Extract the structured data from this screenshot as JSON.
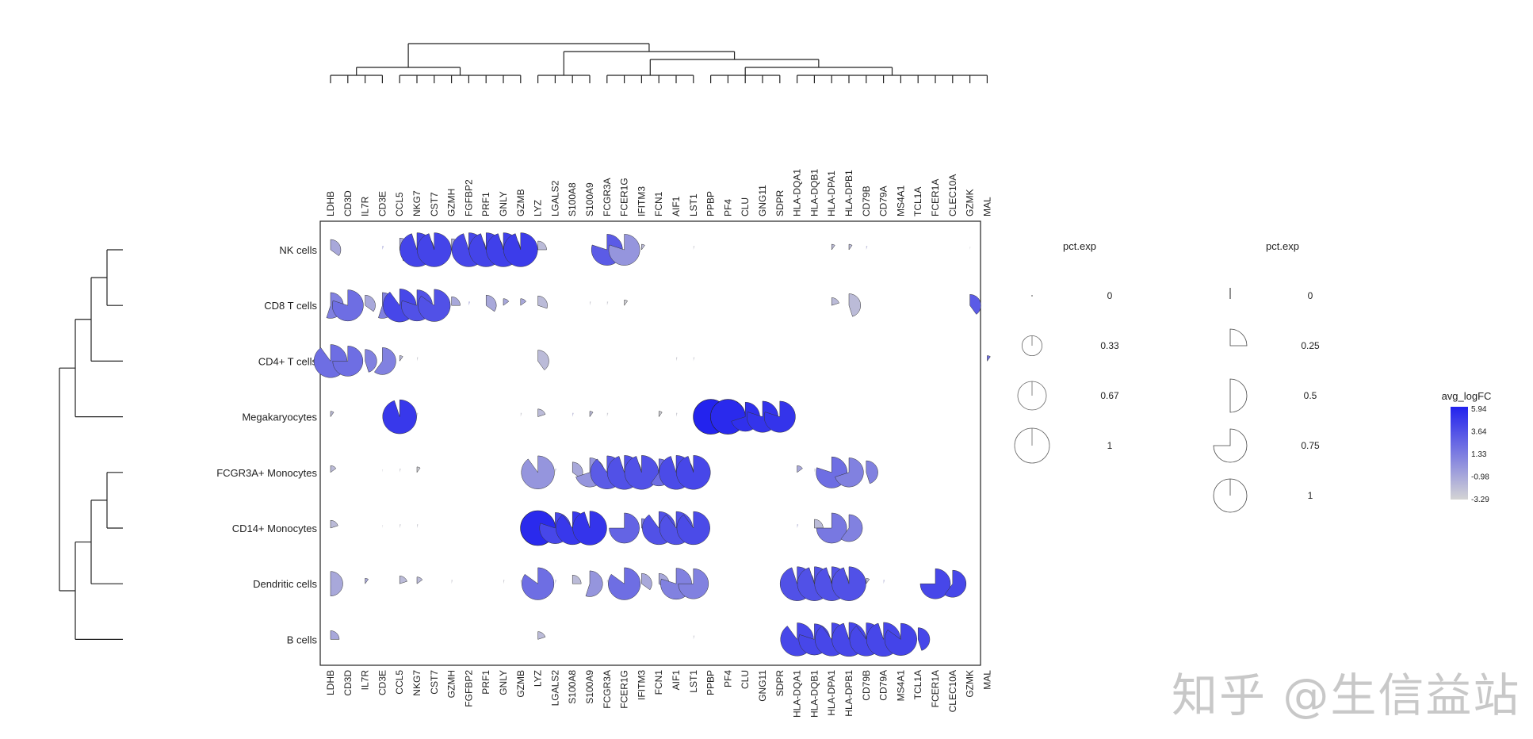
{
  "chart_data": {
    "type": "scatter",
    "genes": [
      "LDHB",
      "CD3D",
      "IL7R",
      "CD3E",
      "CCL5",
      "NKG7",
      "CST7",
      "GZMH",
      "FGFBP2",
      "PRF1",
      "GNLY",
      "GZMB",
      "LYZ",
      "LGALS2",
      "S100A8",
      "S100A9",
      "FCGR3A",
      "FCER1G",
      "IFITM3",
      "FCN1",
      "AIF1",
      "LST1",
      "PPBP",
      "PF4",
      "CLU",
      "GNG11",
      "SDPR",
      "HLA-DQA1",
      "HLA-DQB1",
      "HLA-DPA1",
      "HLA-DPB1",
      "CD79B",
      "CD79A",
      "MS4A1",
      "TCL1A",
      "FCER1A",
      "CLEC10A",
      "GZMK",
      "MAL"
    ],
    "cell_types": [
      "NK cells",
      "CD8 T cells",
      "CD4+ T cells",
      "Megakaryocytes",
      "FCGR3A+ Monocytes",
      "CD14+ Monocytes",
      "Dendritic cells",
      "B cells"
    ],
    "pct_exp": [
      [
        0.35,
        0,
        0,
        0.05,
        0.45,
        0.95,
        0.95,
        0.4,
        0.95,
        0.95,
        0.95,
        0.95,
        0.25,
        0,
        0,
        0,
        0.8,
        0.8,
        0.1,
        0,
        0,
        0.05,
        0,
        0,
        0,
        0,
        0,
        0,
        0,
        0.1,
        0.1,
        0.05,
        0,
        0,
        0,
        0,
        0,
        0.03,
        0
      ],
      [
        0.55,
        0.8,
        0.35,
        0.55,
        0.9,
        0.8,
        0.85,
        0.25,
        0.05,
        0.35,
        0.15,
        0.15,
        0.3,
        0,
        0,
        0.05,
        0.05,
        0.1,
        0,
        0,
        0,
        0,
        0,
        0,
        0,
        0,
        0,
        0,
        0,
        0.2,
        0.45,
        0,
        0,
        0,
        0,
        0,
        0,
        0.4,
        0
      ],
      [
        0.9,
        0.75,
        0.45,
        0.6,
        0.1,
        0.05,
        0,
        0,
        0,
        0,
        0,
        0,
        0.4,
        0,
        0,
        0,
        0,
        0,
        0,
        0,
        0.05,
        0.05,
        0,
        0,
        0,
        0,
        0,
        0,
        0,
        0,
        0,
        0,
        0,
        0,
        0,
        0,
        0,
        0,
        0.1
      ],
      [
        0.1,
        0,
        0,
        0.05,
        0.95,
        0.05,
        0,
        0,
        0,
        0,
        0,
        0.05,
        0.2,
        0,
        0.05,
        0.1,
        0.05,
        0,
        0,
        0.1,
        0.05,
        0,
        1,
        1,
        0.7,
        0.8,
        0.8,
        0,
        0,
        0,
        0,
        0,
        0,
        0,
        0,
        0,
        0,
        0,
        0
      ],
      [
        0.15,
        0,
        0,
        0.03,
        0.05,
        0.1,
        0,
        0,
        0,
        0,
        0,
        0,
        0.9,
        0.05,
        0.35,
        0.7,
        0.9,
        0.95,
        0.95,
        0.6,
        0.95,
        0.95,
        0,
        0,
        0,
        0,
        0,
        0.15,
        0.05,
        0.8,
        0.7,
        0.45,
        0,
        0,
        0,
        0,
        0,
        0,
        0
      ],
      [
        0.2,
        0,
        0,
        0.03,
        0.05,
        0.05,
        0,
        0,
        0,
        0,
        0,
        0,
        1,
        0.8,
        0.9,
        0.95,
        0,
        0.75,
        0.3,
        0.9,
        0.9,
        0.9,
        0,
        0,
        0,
        0,
        0,
        0.05,
        0.25,
        0.75,
        0.6,
        0,
        0,
        0,
        0,
        0,
        0,
        0,
        0
      ],
      [
        0.5,
        0,
        0.1,
        0,
        0.2,
        0.15,
        0,
        0.05,
        0,
        0,
        0.05,
        0.05,
        0.85,
        0.05,
        0.25,
        0.55,
        0.05,
        0.85,
        0.35,
        0.35,
        0.8,
        0.75,
        0,
        0,
        0,
        0,
        0,
        0.95,
        0.95,
        0.95,
        0.95,
        0.1,
        0.05,
        0,
        0,
        0.75,
        0.6,
        0,
        0
      ],
      [
        0.25,
        0,
        0,
        0,
        0,
        0,
        0,
        0,
        0,
        0,
        0,
        0,
        0.2,
        0,
        0,
        0,
        0,
        0,
        0,
        0,
        0,
        0.05,
        0,
        0,
        0,
        0,
        0,
        0.9,
        0.8,
        0.9,
        0.95,
        0.9,
        0.95,
        0.85,
        0.45,
        0,
        0,
        0,
        0
      ]
    ],
    "avg_logFC": [
      [
        -1,
        -2,
        -2,
        -1,
        -1,
        4.2,
        4.2,
        -1,
        4.0,
        4.2,
        4.4,
        4.6,
        -2,
        -3,
        -3,
        -3,
        3,
        0,
        -2,
        -3,
        -3,
        -3,
        -3,
        -3,
        -3,
        -3,
        -3,
        -3,
        -3,
        -2,
        -2,
        -2,
        -3,
        -3,
        -3,
        -3,
        -3,
        -3,
        -3
      ],
      [
        1,
        2,
        -1,
        1,
        4,
        3.5,
        3.5,
        -1,
        -1,
        -1,
        -1,
        -1,
        -2,
        -3,
        -3,
        -3,
        -3,
        -3,
        -3,
        -3,
        -3,
        -3,
        -3,
        -3,
        -3,
        -3,
        -3,
        -3,
        -3,
        -2,
        -2,
        -3,
        -3,
        -3,
        -3,
        -3,
        -3,
        3,
        -3
      ],
      [
        2,
        2,
        1,
        1,
        -2,
        -3,
        -3,
        -3,
        -3,
        -3,
        -3,
        -3,
        -2,
        -3,
        -3,
        -3,
        -3,
        -3,
        -3,
        -3,
        -3,
        -3,
        -3,
        -3,
        -3,
        -3,
        -3,
        -3,
        -3,
        -3,
        -3,
        -3,
        -3,
        -3,
        -3,
        -3,
        -3,
        -3,
        2
      ],
      [
        -2,
        -3,
        -3,
        -3,
        4.8,
        -3,
        -3,
        -3,
        -3,
        -3,
        -3,
        -3,
        -2,
        -3,
        -2,
        -2,
        -3,
        -3,
        -3,
        -3,
        -3,
        -3,
        5.9,
        5.5,
        5.2,
        5.0,
        5.0,
        -3,
        -3,
        -3,
        -3,
        -3,
        -3,
        -3,
        -3,
        -3,
        -3,
        -3,
        -3
      ],
      [
        -2,
        -3,
        -3,
        -3,
        -3,
        -3,
        -3,
        -3,
        -3,
        -3,
        -3,
        -3,
        0,
        -2,
        -1,
        0,
        3.0,
        3.5,
        3.5,
        2,
        3.8,
        4.0,
        -3,
        -3,
        -3,
        -3,
        -3,
        -1,
        -3,
        2,
        1,
        1,
        -3,
        -3,
        -3,
        -3,
        -3,
        -3,
        -3
      ],
      [
        -2,
        -3,
        -3,
        -3,
        -3,
        -3,
        -3,
        -3,
        -3,
        -3,
        -3,
        -3,
        5.5,
        4.0,
        4.8,
        5.0,
        -3,
        2.5,
        1,
        3.5,
        3.5,
        3.8,
        -3,
        -3,
        -3,
        -3,
        -3,
        -2,
        -2,
        1.5,
        1,
        -3,
        -3,
        -3,
        -3,
        -3,
        -3,
        -3,
        -3
      ],
      [
        -1,
        -3,
        -1,
        -3,
        -2,
        -2,
        -3,
        -3,
        -3,
        -3,
        -3,
        -3,
        2,
        -2,
        -2,
        0,
        -3,
        2,
        -1,
        -1,
        1,
        1,
        -3,
        -3,
        -3,
        -3,
        -3,
        3.5,
        3.5,
        3.5,
        3.5,
        -2,
        -2,
        -3,
        -3,
        4,
        4,
        -3,
        -3
      ],
      [
        -1,
        -3,
        -3,
        -3,
        -3,
        -3,
        -3,
        -3,
        -3,
        -3,
        -3,
        -3,
        -2,
        -3,
        -3,
        -3,
        -3,
        -3,
        -3,
        -3,
        -3,
        -3,
        -3,
        -3,
        -3,
        -3,
        -3,
        4.0,
        4.0,
        4.0,
        4.0,
        4.0,
        4.0,
        4.2,
        4.0,
        -3,
        -3,
        -3,
        -3
      ]
    ],
    "legend_pct_circle": {
      "title": "pct.exp",
      "breaks": [
        "0",
        "0.33",
        "0.67",
        "1"
      ]
    },
    "legend_pct_pie": {
      "title": "pct.exp",
      "breaks": [
        "0",
        "0.25",
        "0.5",
        "0.75",
        "1"
      ]
    },
    "legend_color": {
      "title": "avg_logFC",
      "breaks": [
        "5.94",
        "3.64",
        "1.33",
        "-0.98",
        "-3.29"
      ],
      "low_color": "#d4d4d4",
      "high_color": "#2222ee",
      "min": -3.29,
      "max": 5.94
    },
    "column_dendrogram": true,
    "row_dendrogram": true,
    "grid": false
  },
  "watermark": "知乎 @生信益站"
}
